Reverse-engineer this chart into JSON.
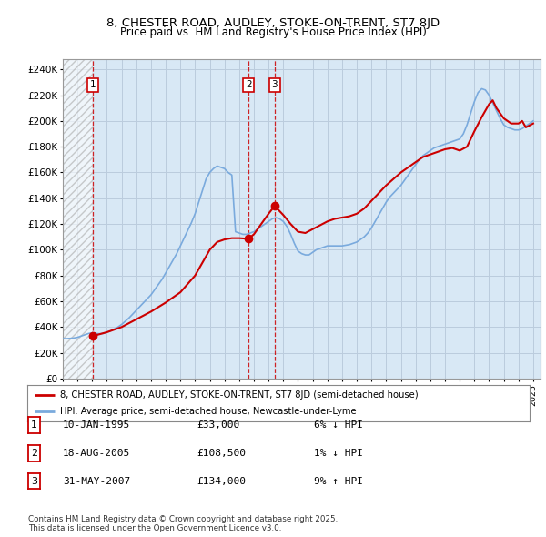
{
  "title": "8, CHESTER ROAD, AUDLEY, STOKE-ON-TRENT, ST7 8JD",
  "subtitle": "Price paid vs. HM Land Registry's House Price Index (HPI)",
  "ylabel_ticks": [
    "£0",
    "£20K",
    "£40K",
    "£60K",
    "£80K",
    "£100K",
    "£120K",
    "£140K",
    "£160K",
    "£180K",
    "£200K",
    "£220K",
    "£240K"
  ],
  "ytick_values": [
    0,
    20000,
    40000,
    60000,
    80000,
    100000,
    120000,
    140000,
    160000,
    180000,
    200000,
    220000,
    240000
  ],
  "ylim": [
    0,
    248000
  ],
  "xlim_start": 1993.0,
  "xlim_end": 2025.5,
  "xtick_years": [
    1993,
    1994,
    1995,
    1996,
    1997,
    1998,
    1999,
    2000,
    2001,
    2002,
    2003,
    2004,
    2005,
    2006,
    2007,
    2008,
    2009,
    2010,
    2011,
    2012,
    2013,
    2014,
    2015,
    2016,
    2017,
    2018,
    2019,
    2020,
    2021,
    2022,
    2023,
    2024,
    2025
  ],
  "hpi_color": "#7aaadd",
  "price_color": "#cc0000",
  "sale_marker_color": "#cc0000",
  "sale_dates_decimal": [
    1995.036,
    2005.633,
    2007.414
  ],
  "sale_prices": [
    33000,
    108500,
    134000
  ],
  "sale_labels": [
    "1",
    "2",
    "3"
  ],
  "vline_color": "#cc0000",
  "grid_color": "#bbccdd",
  "background_color": "#d8e8f5",
  "legend_entries": [
    "8, CHESTER ROAD, AUDLEY, STOKE-ON-TRENT, ST7 8JD (semi-detached house)",
    "HPI: Average price, semi-detached house, Newcastle-under-Lyme"
  ],
  "table_rows": [
    {
      "label": "1",
      "date": "10-JAN-1995",
      "price": "£33,000",
      "hpi_diff": "6% ↓ HPI"
    },
    {
      "label": "2",
      "date": "18-AUG-2005",
      "price": "£108,500",
      "hpi_diff": "1% ↓ HPI"
    },
    {
      "label": "3",
      "date": "31-MAY-2007",
      "price": "£134,000",
      "hpi_diff": "9% ↑ HPI"
    }
  ],
  "footer": "Contains HM Land Registry data © Crown copyright and database right 2025.\nThis data is licensed under the Open Government Licence v3.0.",
  "hpi_data_x": [
    1993.0,
    1993.25,
    1993.5,
    1993.75,
    1994.0,
    1994.25,
    1994.5,
    1994.75,
    1995.0,
    1995.25,
    1995.5,
    1995.75,
    1996.0,
    1996.25,
    1996.5,
    1996.75,
    1997.0,
    1997.25,
    1997.5,
    1997.75,
    1998.0,
    1998.25,
    1998.5,
    1998.75,
    1999.0,
    1999.25,
    1999.5,
    1999.75,
    2000.0,
    2000.25,
    2000.5,
    2000.75,
    2001.0,
    2001.25,
    2001.5,
    2001.75,
    2002.0,
    2002.25,
    2002.5,
    2002.75,
    2003.0,
    2003.25,
    2003.5,
    2003.75,
    2004.0,
    2004.25,
    2004.5,
    2004.75,
    2005.0,
    2005.25,
    2005.5,
    2005.75,
    2006.0,
    2006.25,
    2006.5,
    2006.75,
    2007.0,
    2007.25,
    2007.5,
    2007.75,
    2008.0,
    2008.25,
    2008.5,
    2008.75,
    2009.0,
    2009.25,
    2009.5,
    2009.75,
    2010.0,
    2010.25,
    2010.5,
    2010.75,
    2011.0,
    2011.25,
    2011.5,
    2011.75,
    2012.0,
    2012.25,
    2012.5,
    2012.75,
    2013.0,
    2013.25,
    2013.5,
    2013.75,
    2014.0,
    2014.25,
    2014.5,
    2014.75,
    2015.0,
    2015.25,
    2015.5,
    2015.75,
    2016.0,
    2016.25,
    2016.5,
    2016.75,
    2017.0,
    2017.25,
    2017.5,
    2017.75,
    2018.0,
    2018.25,
    2018.5,
    2018.75,
    2019.0,
    2019.25,
    2019.5,
    2019.75,
    2020.0,
    2020.25,
    2020.5,
    2020.75,
    2021.0,
    2021.25,
    2021.5,
    2021.75,
    2022.0,
    2022.25,
    2022.5,
    2022.75,
    2023.0,
    2023.25,
    2023.5,
    2023.75,
    2024.0,
    2024.25,
    2024.5,
    2024.75,
    2025.0
  ],
  "hpi_data_y": [
    31000,
    31000,
    31200,
    31500,
    32000,
    33000,
    34000,
    35000,
    35500,
    35000,
    34800,
    35000,
    36000,
    37000,
    38500,
    40000,
    42000,
    44500,
    47000,
    50000,
    53000,
    56000,
    59000,
    62000,
    65000,
    69000,
    73000,
    77000,
    82000,
    87000,
    92000,
    97000,
    103000,
    109000,
    115000,
    121000,
    128000,
    137000,
    146000,
    155000,
    160000,
    163000,
    165000,
    164000,
    163000,
    160000,
    158000,
    114000,
    113000,
    112000,
    112000,
    113000,
    114000,
    116000,
    118000,
    120000,
    122000,
    124000,
    125000,
    124000,
    122000,
    118000,
    112000,
    105000,
    99000,
    97000,
    96000,
    96000,
    98000,
    100000,
    101000,
    102000,
    103000,
    103000,
    103000,
    103000,
    103000,
    103500,
    104000,
    105000,
    106000,
    108000,
    110000,
    113000,
    117000,
    122000,
    127000,
    132000,
    137000,
    141000,
    144000,
    147000,
    150000,
    154000,
    158000,
    162000,
    166000,
    170000,
    173000,
    175000,
    177000,
    179000,
    180000,
    181000,
    182000,
    183000,
    184000,
    185000,
    186000,
    190000,
    197000,
    206000,
    215000,
    222000,
    225000,
    224000,
    220000,
    214000,
    208000,
    202000,
    197000,
    195000,
    194000,
    193000,
    193000,
    194000,
    196000,
    198000,
    200000
  ],
  "price_data_x": [
    1995.036,
    1996.0,
    1997.0,
    1998.0,
    1999.0,
    2000.0,
    2001.0,
    2002.0,
    2002.5,
    2003.0,
    2003.5,
    2004.0,
    2004.5,
    2005.0,
    2005.633,
    2006.0,
    2006.5,
    2007.0,
    2007.414,
    2007.75,
    2008.0,
    2008.5,
    2009.0,
    2009.5,
    2010.0,
    2010.5,
    2011.0,
    2011.5,
    2012.0,
    2012.5,
    2013.0,
    2013.5,
    2014.0,
    2014.5,
    2015.0,
    2015.5,
    2016.0,
    2016.5,
    2017.0,
    2017.5,
    2018.0,
    2018.5,
    2019.0,
    2019.5,
    2020.0,
    2020.5,
    2021.0,
    2021.5,
    2022.0,
    2022.25,
    2022.5,
    2023.0,
    2023.5,
    2024.0,
    2024.25,
    2024.5,
    2025.0
  ],
  "price_data_y": [
    33000,
    36000,
    40000,
    46000,
    52000,
    59000,
    67000,
    80000,
    90000,
    100000,
    106000,
    108000,
    109000,
    109000,
    108500,
    112000,
    120000,
    128000,
    134000,
    130000,
    127000,
    120000,
    114000,
    113000,
    116000,
    119000,
    122000,
    124000,
    125000,
    126000,
    128000,
    132000,
    138000,
    144000,
    150000,
    155000,
    160000,
    164000,
    168000,
    172000,
    174000,
    176000,
    178000,
    179000,
    177000,
    180000,
    192000,
    203000,
    213000,
    216000,
    210000,
    202000,
    198000,
    198000,
    200000,
    195000,
    198000
  ]
}
